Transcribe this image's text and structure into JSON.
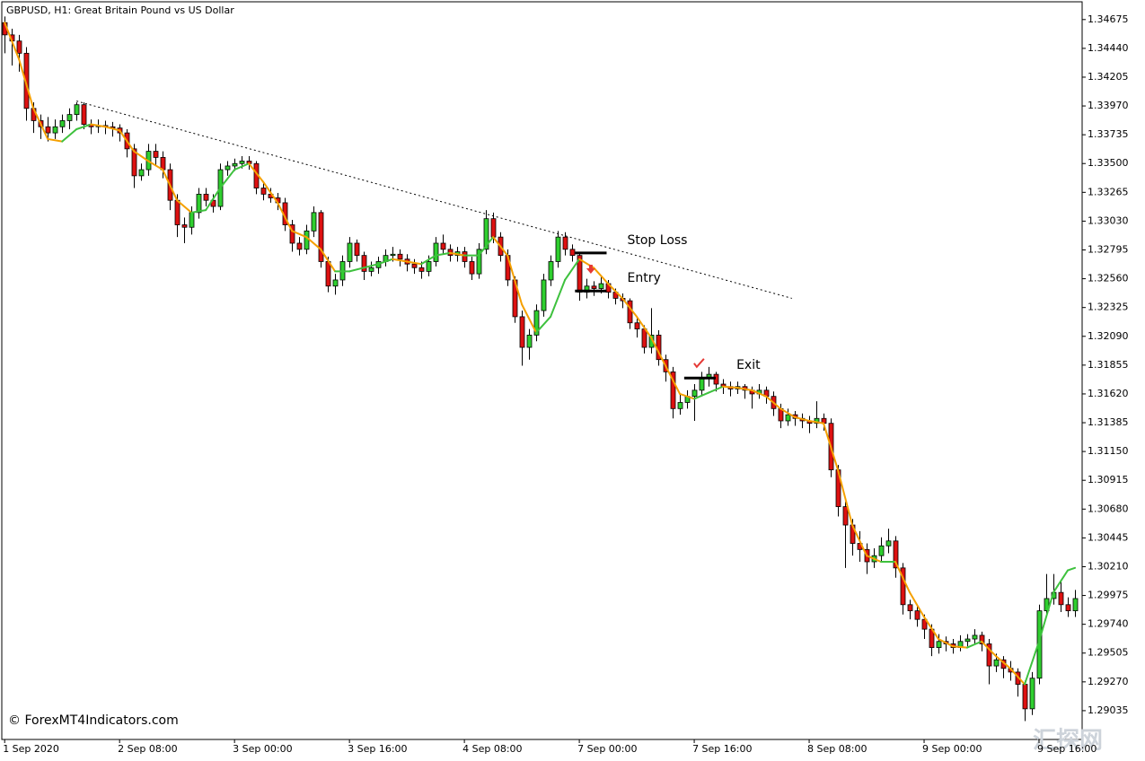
{
  "chart_data": {
    "type": "candlestick",
    "title": "GBPUSD, H1:  Great Britain Pound vs US Dollar",
    "bull_color": "#2fcf2f",
    "bear_color": "#dd1111",
    "xlim": [
      -0.4,
      150
    ],
    "ylim": [
      1.288,
      1.3482
    ],
    "yticks": [
      1.34675,
      {
        "value": 1.3444,
        "label": "1.34440"
      },
      1.34205,
      {
        "value": 1.3397,
        "label": "1.33970"
      },
      1.33735,
      {
        "value": 1.335,
        "label": "1.33500"
      },
      1.33265,
      {
        "value": 1.3303,
        "label": "1.33030"
      },
      1.32795,
      {
        "value": 1.3256,
        "label": "1.32560"
      },
      1.32325,
      {
        "value": 1.3209,
        "label": "1.32090"
      },
      1.31855,
      {
        "value": 1.3162,
        "label": "1.31620"
      },
      1.31385,
      {
        "value": 1.3115,
        "label": "1.31150"
      },
      1.30915,
      {
        "value": 1.3068,
        "label": "1.30680"
      },
      1.30445,
      {
        "value": 1.3021,
        "label": "1.30210"
      },
      1.29975,
      {
        "value": 1.2974,
        "label": "1.29740"
      },
      1.29505,
      {
        "value": 1.2927,
        "label": "1.29270"
      },
      1.29035
    ],
    "xticks": [
      {
        "value": 0,
        "label": "1 Sep 2020"
      },
      {
        "value": 16,
        "label": "2 Sep 08:00"
      },
      {
        "value": 32,
        "label": "3 Sep 00:00"
      },
      {
        "value": 48,
        "label": "3 Sep 16:00"
      },
      {
        "value": 64,
        "label": "4 Sep 08:00"
      },
      {
        "value": 80,
        "label": "7 Sep 00:00"
      },
      {
        "value": 96,
        "label": "7 Sep 16:00"
      },
      {
        "value": 112,
        "label": "8 Sep 08:00"
      },
      {
        "value": 128,
        "label": "9 Sep 00:00"
      },
      {
        "value": 144,
        "label": "9 Sep 16:00"
      }
    ],
    "candles": [
      [
        1.3465,
        1.347,
        1.344,
        1.3455
      ],
      [
        1.3455,
        1.346,
        1.343,
        1.345
      ],
      [
        1.345,
        1.3455,
        1.3425,
        1.344
      ],
      [
        1.344,
        1.3445,
        1.3385,
        1.3395
      ],
      [
        1.3395,
        1.34,
        1.3375,
        1.3385
      ],
      [
        1.3385,
        1.339,
        1.337,
        1.338
      ],
      [
        1.338,
        1.3388,
        1.3368,
        1.3375
      ],
      [
        1.3375,
        1.3386,
        1.337,
        1.338
      ],
      [
        1.338,
        1.339,
        1.3375,
        1.3385
      ],
      [
        1.3385,
        1.3395,
        1.3378,
        1.339
      ],
      [
        1.339,
        1.34,
        1.3385,
        1.3398
      ],
      [
        1.3398,
        1.34,
        1.3378,
        1.3382
      ],
      [
        1.3382,
        1.3386,
        1.3374,
        1.338
      ],
      [
        1.338,
        1.3386,
        1.3375,
        1.3381
      ],
      [
        1.3381,
        1.3385,
        1.3374,
        1.338
      ],
      [
        1.338,
        1.3384,
        1.3372,
        1.3379
      ],
      [
        1.3379,
        1.3382,
        1.3368,
        1.3375
      ],
      [
        1.3375,
        1.3378,
        1.3355,
        1.3362
      ],
      [
        1.3362,
        1.3366,
        1.333,
        1.334
      ],
      [
        1.334,
        1.335,
        1.3336,
        1.3345
      ],
      [
        1.3345,
        1.3366,
        1.334,
        1.336
      ],
      [
        1.336,
        1.3366,
        1.3348,
        1.3355
      ],
      [
        1.3355,
        1.336,
        1.3338,
        1.3345
      ],
      [
        1.3345,
        1.335,
        1.3312,
        1.332
      ],
      [
        1.332,
        1.3325,
        1.329,
        1.33
      ],
      [
        1.33,
        1.3306,
        1.3285,
        1.3298
      ],
      [
        1.3298,
        1.3315,
        1.3292,
        1.331
      ],
      [
        1.331,
        1.333,
        1.3305,
        1.3325
      ],
      [
        1.3325,
        1.333,
        1.3315,
        1.332
      ],
      [
        1.332,
        1.3325,
        1.331,
        1.3315
      ],
      [
        1.3315,
        1.335,
        1.3312,
        1.3345
      ],
      [
        1.3345,
        1.3352,
        1.334,
        1.3348
      ],
      [
        1.3348,
        1.3354,
        1.3344,
        1.335
      ],
      [
        1.335,
        1.3356,
        1.3346,
        1.3352
      ],
      [
        1.3352,
        1.3356,
        1.3345,
        1.335
      ],
      [
        1.335,
        1.3352,
        1.3325,
        1.333
      ],
      [
        1.333,
        1.3335,
        1.332,
        1.3325
      ],
      [
        1.3325,
        1.333,
        1.3318,
        1.3322
      ],
      [
        1.3322,
        1.3326,
        1.3312,
        1.3318
      ],
      [
        1.3318,
        1.3322,
        1.3295,
        1.33
      ],
      [
        1.33,
        1.3304,
        1.3278,
        1.3285
      ],
      [
        1.3285,
        1.329,
        1.3275,
        1.328
      ],
      [
        1.328,
        1.33,
        1.3276,
        1.3295
      ],
      [
        1.3295,
        1.3315,
        1.329,
        1.331
      ],
      [
        1.331,
        1.3312,
        1.3265,
        1.327
      ],
      [
        1.327,
        1.3274,
        1.3245,
        1.325
      ],
      [
        1.325,
        1.326,
        1.3243,
        1.3255
      ],
      [
        1.3255,
        1.3275,
        1.325,
        1.327
      ],
      [
        1.327,
        1.329,
        1.3265,
        1.3285
      ],
      [
        1.3285,
        1.3288,
        1.327,
        1.3275
      ],
      [
        1.3275,
        1.3278,
        1.3255,
        1.3262
      ],
      [
        1.3262,
        1.327,
        1.3258,
        1.3265
      ],
      [
        1.3265,
        1.3274,
        1.326,
        1.327
      ],
      [
        1.327,
        1.328,
        1.3266,
        1.3275
      ],
      [
        1.3275,
        1.3282,
        1.327,
        1.3276
      ],
      [
        1.3276,
        1.328,
        1.3266,
        1.3272
      ],
      [
        1.3272,
        1.3276,
        1.3262,
        1.3268
      ],
      [
        1.3268,
        1.3272,
        1.326,
        1.3265
      ],
      [
        1.3265,
        1.327,
        1.3256,
        1.3262
      ],
      [
        1.3262,
        1.3275,
        1.3258,
        1.327
      ],
      [
        1.327,
        1.329,
        1.3266,
        1.3285
      ],
      [
        1.3285,
        1.3292,
        1.3276,
        1.328
      ],
      [
        1.328,
        1.3284,
        1.327,
        1.3275
      ],
      [
        1.3275,
        1.3282,
        1.327,
        1.3278
      ],
      [
        1.3278,
        1.3282,
        1.3265,
        1.327
      ],
      [
        1.327,
        1.3274,
        1.3255,
        1.326
      ],
      [
        1.326,
        1.3285,
        1.3256,
        1.328
      ],
      [
        1.328,
        1.3312,
        1.3276,
        1.3305
      ],
      [
        1.3305,
        1.331,
        1.3285,
        1.329
      ],
      [
        1.329,
        1.3294,
        1.327,
        1.3275
      ],
      [
        1.3275,
        1.328,
        1.325,
        1.3255
      ],
      [
        1.3255,
        1.3258,
        1.322,
        1.3225
      ],
      [
        1.3225,
        1.323,
        1.3185,
        1.32
      ],
      [
        1.32,
        1.3215,
        1.319,
        1.321
      ],
      [
        1.321,
        1.3235,
        1.3205,
        1.323
      ],
      [
        1.323,
        1.326,
        1.3225,
        1.3255
      ],
      [
        1.3255,
        1.3275,
        1.325,
        1.327
      ],
      [
        1.327,
        1.3295,
        1.3265,
        1.329
      ],
      [
        1.329,
        1.3294,
        1.3275,
        1.328
      ],
      [
        1.328,
        1.3284,
        1.327,
        1.3275
      ],
      [
        1.3275,
        1.3278,
        1.3238,
        1.3245
      ],
      [
        1.3245,
        1.3256,
        1.324,
        1.325
      ],
      [
        1.325,
        1.3254,
        1.3242,
        1.3248
      ],
      [
        1.3248,
        1.3258,
        1.3244,
        1.3252
      ],
      [
        1.3252,
        1.3255,
        1.324,
        1.3245
      ],
      [
        1.3245,
        1.3248,
        1.3235,
        1.324
      ],
      [
        1.324,
        1.3244,
        1.3232,
        1.3238
      ],
      [
        1.3238,
        1.324,
        1.3215,
        1.322
      ],
      [
        1.322,
        1.3225,
        1.3208,
        1.3215
      ],
      [
        1.3215,
        1.3218,
        1.3195,
        1.32
      ],
      [
        1.32,
        1.3232,
        1.3195,
        1.321
      ],
      [
        1.321,
        1.3214,
        1.3185,
        1.319
      ],
      [
        1.319,
        1.3194,
        1.3172,
        1.318
      ],
      [
        1.318,
        1.3184,
        1.3142,
        1.315
      ],
      [
        1.315,
        1.3162,
        1.3145,
        1.3155
      ],
      [
        1.3155,
        1.3165,
        1.315,
        1.316
      ],
      [
        1.316,
        1.317,
        1.314,
        1.3165
      ],
      [
        1.3165,
        1.318,
        1.316,
        1.3175
      ],
      [
        1.3175,
        1.3184,
        1.3168,
        1.3178
      ],
      [
        1.3178,
        1.318,
        1.3164,
        1.317
      ],
      [
        1.317,
        1.3174,
        1.3162,
        1.3168
      ],
      [
        1.3168,
        1.3172,
        1.316,
        1.3166
      ],
      [
        1.3166,
        1.3172,
        1.3162,
        1.3168
      ],
      [
        1.3168,
        1.317,
        1.3158,
        1.3165
      ],
      [
        1.3165,
        1.3168,
        1.315,
        1.3162
      ],
      [
        1.3162,
        1.317,
        1.3158,
        1.3165
      ],
      [
        1.3165,
        1.3168,
        1.3154,
        1.316
      ],
      [
        1.316,
        1.3164,
        1.3144,
        1.315
      ],
      [
        1.315,
        1.3154,
        1.3134,
        1.314
      ],
      [
        1.314,
        1.315,
        1.3136,
        1.3145
      ],
      [
        1.3145,
        1.3148,
        1.3136,
        1.3142
      ],
      [
        1.3142,
        1.3146,
        1.3134,
        1.314
      ],
      [
        1.314,
        1.3144,
        1.313,
        1.3138
      ],
      [
        1.3138,
        1.3156,
        1.3134,
        1.3142
      ],
      [
        1.3142,
        1.3146,
        1.3132,
        1.3138
      ],
      [
        1.3138,
        1.3142,
        1.3094,
        1.31
      ],
      [
        1.31,
        1.3104,
        1.3062,
        1.307
      ],
      [
        1.307,
        1.3074,
        1.302,
        1.3055
      ],
      [
        1.3055,
        1.306,
        1.303,
        1.304
      ],
      [
        1.304,
        1.305,
        1.3025,
        1.3035
      ],
      [
        1.3035,
        1.304,
        1.3015,
        1.3025
      ],
      [
        1.3025,
        1.3036,
        1.302,
        1.303
      ],
      [
        1.303,
        1.3045,
        1.3025,
        1.3038
      ],
      [
        1.3038,
        1.3052,
        1.3032,
        1.3042
      ],
      [
        1.3042,
        1.3046,
        1.3012,
        1.302
      ],
      [
        1.302,
        1.3024,
        1.2982,
        1.299
      ],
      [
        1.299,
        1.2994,
        1.2978,
        1.2985
      ],
      [
        1.2985,
        1.299,
        1.2972,
        1.2978
      ],
      [
        1.2978,
        1.2982,
        1.2962,
        1.297
      ],
      [
        1.297,
        1.2974,
        1.2948,
        1.2955
      ],
      [
        1.2955,
        1.2966,
        1.295,
        1.296
      ],
      [
        1.296,
        1.2964,
        1.2952,
        1.2958
      ],
      [
        1.2958,
        1.2962,
        1.295,
        1.2955
      ],
      [
        1.2955,
        1.2965,
        1.2952,
        1.296
      ],
      [
        1.296,
        1.2966,
        1.2956,
        1.2962
      ],
      [
        1.2962,
        1.297,
        1.2958,
        1.2965
      ],
      [
        1.2965,
        1.2968,
        1.2952,
        1.2958
      ],
      [
        1.2958,
        1.2962,
        1.2925,
        1.294
      ],
      [
        1.294,
        1.295,
        1.2935,
        1.2945
      ],
      [
        1.2945,
        1.2948,
        1.293,
        1.2938
      ],
      [
        1.2938,
        1.2944,
        1.2928,
        1.2935
      ],
      [
        1.2935,
        1.2938,
        1.2915,
        1.2925
      ],
      [
        1.2925,
        1.2928,
        1.2895,
        1.2905
      ],
      [
        1.2905,
        1.2935,
        1.29,
        1.293
      ],
      [
        1.293,
        1.299,
        1.2925,
        1.2985
      ],
      [
        1.2985,
        1.3015,
        1.298,
        1.2995
      ],
      [
        1.2995,
        1.3015,
        1.299,
        1.3
      ],
      [
        1.3,
        1.301,
        1.2984,
        1.299
      ],
      [
        1.299,
        1.2996,
        1.298,
        1.2985
      ],
      [
        1.2985,
        1.3002,
        1.298,
        1.2995
      ]
    ],
    "indicator": {
      "up_color": "#3ec13e",
      "down_color": "#f5a000",
      "x": [
        0,
        2,
        4,
        6,
        8,
        10,
        12,
        14,
        16,
        18,
        20,
        22,
        24,
        26,
        28,
        30,
        32,
        34,
        36,
        38,
        40,
        42,
        44,
        46,
        48,
        50,
        52,
        54,
        56,
        58,
        60,
        62,
        64,
        66,
        68,
        70,
        72,
        74,
        76,
        78,
        80,
        82,
        84,
        86,
        88,
        90,
        92,
        94,
        96,
        98,
        100,
        102,
        104,
        106,
        108,
        110,
        112,
        114,
        116,
        118,
        120,
        122,
        124,
        126,
        128,
        130,
        132,
        134,
        136,
        138,
        140,
        142,
        144,
        146,
        148,
        149
      ],
      "values": [
        1.3465,
        1.3435,
        1.3395,
        1.337,
        1.3368,
        1.3378,
        1.3382,
        1.338,
        1.3377,
        1.336,
        1.3352,
        1.3345,
        1.332,
        1.331,
        1.3312,
        1.333,
        1.3345,
        1.335,
        1.3335,
        1.3318,
        1.3295,
        1.329,
        1.328,
        1.3262,
        1.3262,
        1.3265,
        1.3268,
        1.3272,
        1.327,
        1.3268,
        1.3275,
        1.3277,
        1.3275,
        1.3275,
        1.329,
        1.3275,
        1.3235,
        1.3212,
        1.3225,
        1.3255,
        1.3272,
        1.3265,
        1.3252,
        1.324,
        1.3225,
        1.3208,
        1.3185,
        1.3162,
        1.3158,
        1.3163,
        1.3168,
        1.3167,
        1.3165,
        1.316,
        1.315,
        1.3143,
        1.314,
        1.3138,
        1.31,
        1.3055,
        1.303,
        1.3025,
        1.3025,
        1.3,
        1.298,
        1.2962,
        1.2956,
        1.2955,
        1.296,
        1.2948,
        1.2938,
        1.2925,
        1.296,
        1.3,
        1.3018,
        1.302
      ]
    },
    "trendline": {
      "x": [
        10,
        109.6
      ],
      "values": [
        1.3401,
        1.324
      ]
    },
    "levels": [
      {
        "label": "Stop Loss",
        "value": 1.3277,
        "x": [
          79.4,
          83.8
        ]
      },
      {
        "label": "Entry",
        "value": 1.3246,
        "x": [
          79.4,
          83.8
        ]
      },
      {
        "label": "Exit",
        "value": 1.3175,
        "x": [
          94.6,
          99
        ]
      }
    ],
    "signals": [
      {
        "x": 81.6,
        "value": 1.3263,
        "color": "#e53935"
      },
      {
        "x": 96.6,
        "value": 1.3187,
        "color": "#e53935"
      }
    ],
    "copyright": "© ForexMT4Indicators.com",
    "watermark": "汇探网"
  }
}
